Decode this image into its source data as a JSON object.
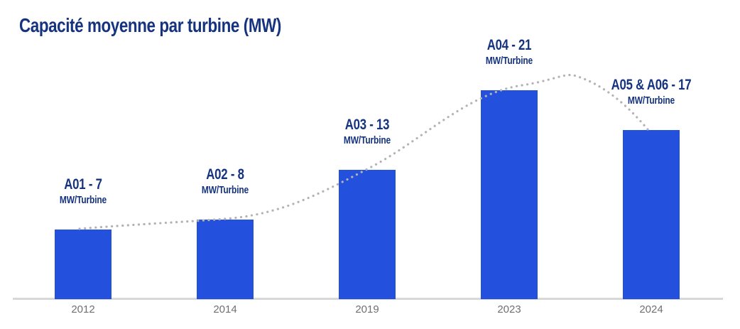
{
  "title": "Capacité moyenne par turbine (MW)",
  "chart_data": {
    "type": "bar",
    "title": "Capacité moyenne par turbine (MW)",
    "categories": [
      "2012",
      "2014",
      "2019",
      "2023",
      "2024"
    ],
    "values": [
      7,
      8,
      13,
      21,
      17
    ],
    "projects": [
      "A01",
      "A02",
      "A03",
      "A04",
      "A05 & A06"
    ],
    "bar_labels": [
      "A01 - 7",
      "A02 - 8",
      "A03 - 13",
      "A04 - 21",
      "A05 & A06 - 17"
    ],
    "unit_label": "MW/Turbine",
    "xlabel": "",
    "ylabel": "",
    "ylim": [
      0,
      23
    ],
    "grid": false,
    "legend": false,
    "trendline": "dotted smooth curve through bar tops, peaking above the 2023 bar"
  },
  "colors": {
    "background": "#FFFFFF",
    "bar": "#2350DC",
    "title_text": "#16337F",
    "label_text": "#16337F",
    "year_text": "#707070",
    "axis_line": "#D8D8D8",
    "trend_dots": "#B3B3B3"
  }
}
